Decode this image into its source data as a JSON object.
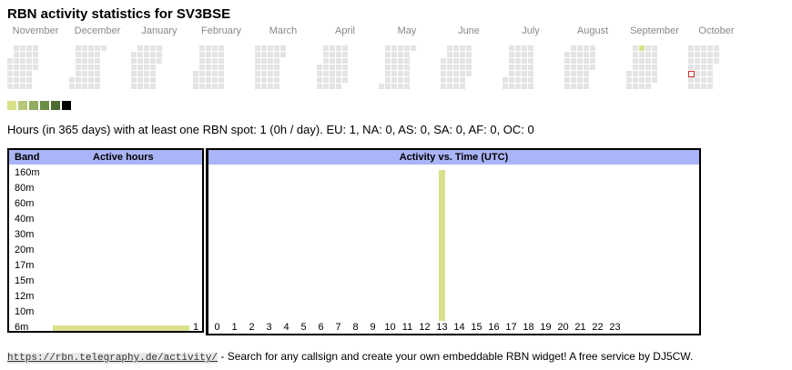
{
  "page": {
    "title": "RBN activity statistics for SV3BSE"
  },
  "calendar": {
    "months": [
      "November",
      "December",
      "January",
      "February",
      "March",
      "April",
      "May",
      "June",
      "July",
      "August",
      "September",
      "October"
    ],
    "legend_colors": [
      "#d9e08c",
      "#b6c77a",
      "#8fae5f",
      "#6b8c44",
      "#4c6a31",
      "#000000"
    ],
    "cell_color_empty": "#e4e4e4",
    "active_cell_color": "#d9e08c",
    "today_marker_color": "#cc3333"
  },
  "summary": {
    "text": "Hours (in 365 days) with at least one RBN spot: 1 (0h / day). EU: 1, NA: 0, AS: 0, SA: 0, AF: 0, OC: 0"
  },
  "band_table": {
    "header_band": "Band",
    "header_hours": "Active hours",
    "bands": [
      "160m",
      "80m",
      "60m",
      "40m",
      "30m",
      "20m",
      "17m",
      "15m",
      "12m",
      "10m",
      "6m"
    ],
    "hours": [
      0,
      0,
      0,
      0,
      0,
      0,
      0,
      0,
      0,
      0,
      1
    ],
    "hours_label_6m": "1",
    "bar_color": "#d9e08c"
  },
  "activity_table": {
    "header": "Activity vs. Time (UTC)",
    "hours": [
      "0",
      "1",
      "2",
      "3",
      "4",
      "5",
      "6",
      "7",
      "8",
      "9",
      "10",
      "11",
      "12",
      "13",
      "14",
      "15",
      "16",
      "17",
      "18",
      "19",
      "20",
      "21",
      "22",
      "23"
    ],
    "active_hour": 13,
    "bar_color": "#d9e08c"
  },
  "footer": {
    "url": "https://rbn.telegraphy.de/activity/",
    "text": " - Search for any callsign and create your own embeddable RBN widget! A free service by DJ5CW."
  }
}
